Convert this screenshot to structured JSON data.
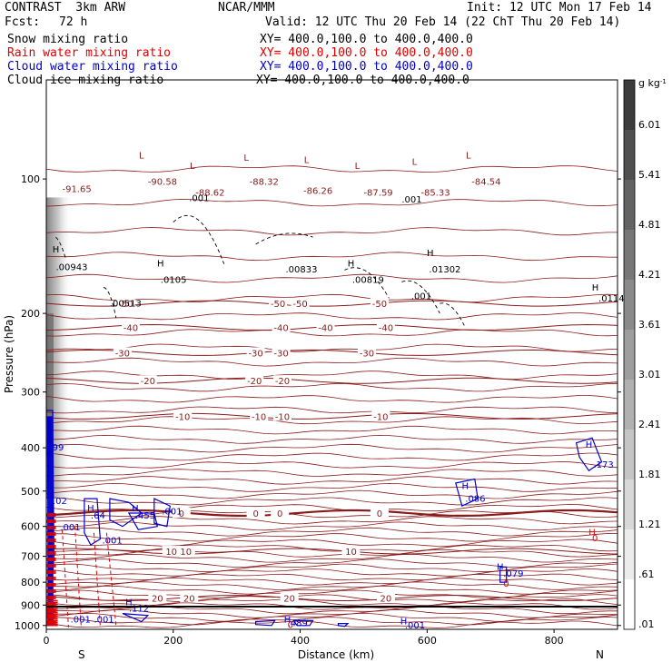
{
  "header": {
    "model": "CONTRAST  3km ARW",
    "org": "NCAR/MMM",
    "init": "Init: 12 UTC Mon 17 Feb 14",
    "fcst_label": "Fcst:",
    "fcst_value": "72 h",
    "valid": "Valid: 12 UTC Thu 20 Feb 14 (22 ChT Thu 20 Feb 14)"
  },
  "legend": [
    {
      "name": "Snow mixing ratio",
      "xy": "XY= 400.0,100.0 to 400.0,400.0",
      "color": "#000000"
    },
    {
      "name": "Rain water mixing ratio",
      "xy": "XY= 400.0,100.0 to 400.0,400.0",
      "color": "#e00000"
    },
    {
      "name": "Cloud water mixing ratio",
      "xy": "XY= 400.0,100.0 to 400.0,400.0",
      "color": "#0000cc"
    },
    {
      "name": "Cloud ice mixing ratio",
      "xy": "XY= 400.0,100.0 to 400.0,400.0",
      "color": "#000000"
    }
  ],
  "colors": {
    "temperature": "#8b1a1a",
    "cloud_water": "#0000cc",
    "rain": "#e00000",
    "snow": "#000000"
  },
  "chart_data": {
    "type": "heatmap",
    "xlabel": "Distance (km)",
    "ylabel": "Pressure (hPa)",
    "xlim": [
      0,
      900
    ],
    "ylim": [
      1020,
      60
    ],
    "y_log": true,
    "x_ticks": [
      0,
      200,
      400,
      600,
      800
    ],
    "y_ticks": [
      100,
      200,
      300,
      400,
      500,
      600,
      700,
      800,
      900,
      1000
    ],
    "x_end_labels": {
      "left": "S",
      "right": "N"
    },
    "colorbar": {
      "unit": "g kg",
      "unit_exp": "-1",
      "tick_labels": [
        "6.01",
        "5.41",
        "4.81",
        "4.21",
        "3.61",
        "3.01",
        "2.41",
        "1.81",
        "1.21",
        ".61",
        ".01"
      ],
      "tick_values": [
        6.01,
        5.41,
        4.81,
        4.21,
        3.61,
        3.01,
        2.41,
        1.81,
        1.21,
        0.61,
        0.01
      ]
    },
    "temperature_isotherms": [
      {
        "label": "-50",
        "p": 190,
        "label_x": [
          125,
          365,
          400,
          525
        ]
      },
      {
        "label": "-40",
        "p": 215,
        "label_x": [
          133,
          370,
          440,
          535
        ]
      },
      {
        "label": "-30",
        "p": 245,
        "label_x": [
          120,
          330,
          370,
          505
        ]
      },
      {
        "label": "-20",
        "p": 283,
        "label_x": [
          160,
          328,
          372
        ]
      },
      {
        "label": "-10",
        "p": 340,
        "label_x": [
          215,
          335,
          372,
          527
        ]
      },
      {
        "label": "0",
        "p": 560,
        "label_x": [
          213,
          330,
          368,
          525
        ]
      },
      {
        "label": "10",
        "p": 682,
        "label_x": [
          197,
          220,
          480
        ]
      },
      {
        "label": "20",
        "p": 868,
        "label_x": [
          175,
          225,
          383,
          535
        ]
      }
    ],
    "extreme_labels": [
      {
        "text": "-91.65",
        "x": 25,
        "p": 107,
        "color": "temperature"
      },
      {
        "text": "-90.58",
        "x": 160,
        "p": 103,
        "color": "temperature"
      },
      {
        "text": "-88.62",
        "x": 235,
        "p": 109,
        "color": "temperature"
      },
      {
        "text": "-88.32",
        "x": 320,
        "p": 103,
        "color": "temperature"
      },
      {
        "text": "-86.26",
        "x": 405,
        "p": 108,
        "color": "temperature"
      },
      {
        "text": "-87.59",
        "x": 500,
        "p": 109,
        "color": "temperature"
      },
      {
        "text": "-85.33",
        "x": 590,
        "p": 109,
        "color": "temperature"
      },
      {
        "text": "-84.54",
        "x": 670,
        "p": 103,
        "color": "temperature"
      },
      {
        "text": ".00943",
        "x": 15,
        "p": 160,
        "color": "snow"
      },
      {
        "text": ".0105",
        "x": 180,
        "p": 171,
        "color": "snow"
      },
      {
        "text": ".00833",
        "x": 377,
        "p": 162,
        "color": "snow"
      },
      {
        "text": ".00819",
        "x": 482,
        "p": 171,
        "color": "snow"
      },
      {
        "text": ".01302",
        "x": 603,
        "p": 162,
        "color": "snow"
      },
      {
        "text": ".0114",
        "x": 870,
        "p": 188,
        "color": "snow"
      },
      {
        "text": ".00513",
        "x": 100,
        "p": 193,
        "color": "snow"
      },
      {
        "text": ".001",
        "x": 225,
        "p": 112,
        "color": "snow"
      },
      {
        "text": ".001",
        "x": 560,
        "p": 113,
        "color": "snow"
      },
      {
        "text": ".001",
        "x": 575,
        "p": 186,
        "color": "snow"
      },
      {
        "text": ".99",
        "x": 5,
        "p": 405,
        "color": "cloud_water"
      },
      {
        "text": ".02",
        "x": 10,
        "p": 535,
        "color": "cloud_water"
      },
      {
        "text": ".001",
        "x": 22,
        "p": 612,
        "color": "cloud_water"
      },
      {
        "text": ".64",
        "x": 70,
        "p": 576,
        "color": "cloud_water"
      },
      {
        "text": ".455",
        "x": 140,
        "p": 576,
        "color": "cloud_water"
      },
      {
        "text": ".001",
        "x": 182,
        "p": 564,
        "color": "cloud_water"
      },
      {
        "text": ".001",
        "x": 88,
        "p": 655,
        "color": "cloud_water"
      },
      {
        "text": ".173",
        "x": 862,
        "p": 443,
        "color": "cloud_water"
      },
      {
        "text": ".086",
        "x": 660,
        "p": 528,
        "color": "cloud_water"
      },
      {
        "text": ".079",
        "x": 720,
        "p": 778,
        "color": "cloud_water"
      },
      {
        "text": ".112",
        "x": 130,
        "p": 932,
        "color": "cloud_water"
      },
      {
        "text": ".001",
        "x": 38,
        "p": 985,
        "color": "cloud_water"
      },
      {
        "text": ".001",
        "x": 75,
        "p": 985,
        "color": "cloud_water"
      },
      {
        "text": ".489",
        "x": 380,
        "p": 1003,
        "color": "cloud_water"
      },
      {
        "text": ".001",
        "x": 565,
        "p": 1015,
        "color": "cloud_water"
      },
      {
        "text": "0",
        "x": 860,
        "p": 648,
        "color": "rain"
      },
      {
        "text": "0",
        "x": 720,
        "p": 818,
        "color": "rain"
      },
      {
        "text": "0",
        "x": 380,
        "p": 1012,
        "color": "rain"
      }
    ],
    "highs": [
      {
        "x": 15,
        "p": 146,
        "color": "snow"
      },
      {
        "x": 180,
        "p": 157,
        "color": "snow"
      },
      {
        "x": 480,
        "p": 157,
        "color": "snow"
      },
      {
        "x": 605,
        "p": 149,
        "color": "snow"
      },
      {
        "x": 865,
        "p": 178,
        "color": "snow"
      },
      {
        "x": 855,
        "p": 400,
        "color": "cloud_water"
      },
      {
        "x": 660,
        "p": 495,
        "color": "cloud_water"
      },
      {
        "x": 70,
        "p": 555,
        "color": "cloud_water"
      },
      {
        "x": 140,
        "p": 555,
        "color": "cloud_water"
      },
      {
        "x": 715,
        "p": 750,
        "color": "cloud_water"
      },
      {
        "x": 130,
        "p": 900,
        "color": "cloud_water"
      },
      {
        "x": 380,
        "p": 985,
        "color": "cloud_water"
      },
      {
        "x": 563,
        "p": 995,
        "color": "cloud_water"
      },
      {
        "x": 860,
        "p": 628,
        "color": "rain"
      }
    ],
    "lows": [
      {
        "x": 150,
        "p": 90
      },
      {
        "x": 230,
        "p": 95
      },
      {
        "x": 315,
        "p": 91
      },
      {
        "x": 410,
        "p": 92
      },
      {
        "x": 490,
        "p": 95
      },
      {
        "x": 580,
        "p": 93
      },
      {
        "x": 665,
        "p": 90
      }
    ]
  }
}
